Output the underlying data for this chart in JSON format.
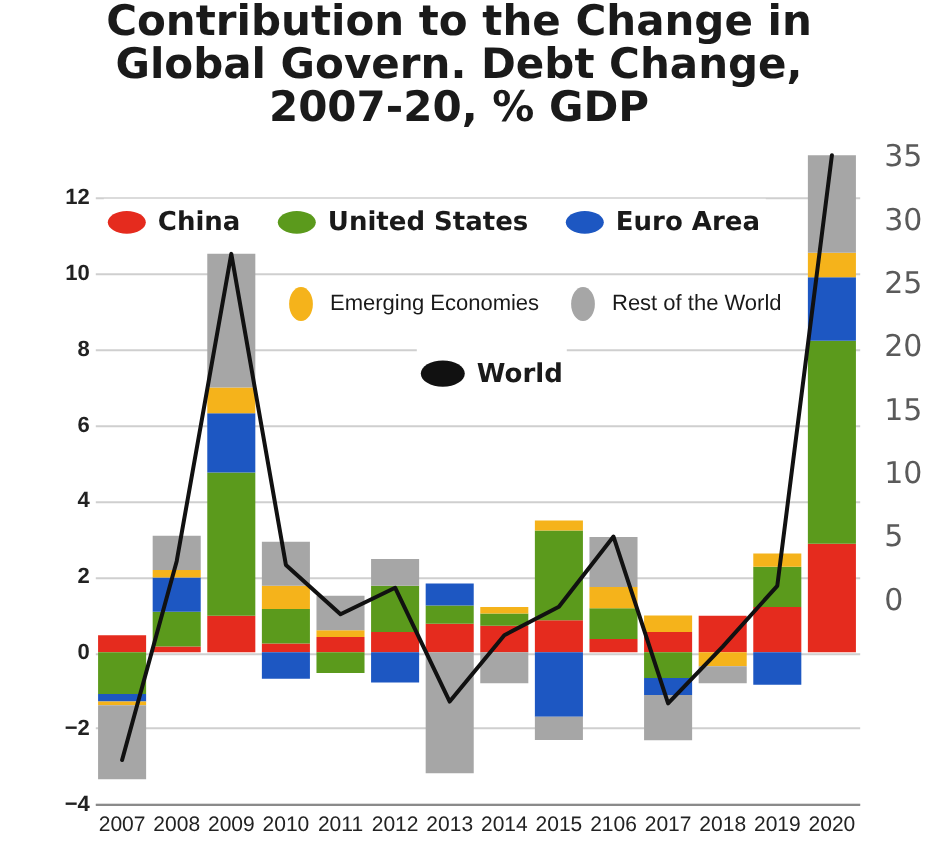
{
  "chart_data": {
    "type": "bar",
    "stacked": true,
    "title": "Contribution to the Change in Global Govern. Debt Change, 2007-20, % GDP",
    "categories": [
      "2007",
      "2008",
      "2009",
      "2010",
      "2011",
      "2012",
      "2013",
      "2014",
      "2015",
      "2106",
      "2017",
      "2018",
      "2019",
      "2020"
    ],
    "series": [
      {
        "name": "China",
        "color": "#e52b1e",
        "values": [
          0.45,
          0.15,
          0.96,
          0.23,
          0.4,
          0.53,
          0.75,
          0.7,
          0.84,
          0.35,
          0.53,
          0.96,
          1.19,
          2.86
        ]
      },
      {
        "name": "United States",
        "color": "#5b9a1c",
        "values": [
          -1.1,
          0.92,
          3.78,
          0.91,
          -0.55,
          1.22,
          0.48,
          0.32,
          2.37,
          0.81,
          -0.68,
          null,
          1.06,
          5.35
        ]
      },
      {
        "name": "Euro Area",
        "color": "#1d57c2",
        "values": [
          -0.2,
          0.9,
          1.56,
          -0.7,
          null,
          -0.8,
          0.58,
          null,
          -1.7,
          null,
          -0.45,
          null,
          -0.86,
          1.67
        ]
      },
      {
        "name": "Emerging Economies",
        "color": "#f5b31b",
        "values": [
          -0.1,
          0.2,
          0.68,
          0.61,
          0.18,
          null,
          null,
          0.17,
          0.26,
          0.56,
          0.44,
          -0.37,
          0.35,
          0.65
        ]
      },
      {
        "name": "Rest of the World",
        "color": "#a6a6a6",
        "values": [
          -1.95,
          0.9,
          3.52,
          1.16,
          0.91,
          0.71,
          -3.19,
          -0.82,
          -0.61,
          1.32,
          -1.19,
          -0.45,
          null,
          2.57
        ]
      },
      {
        "name": "World",
        "type": "line",
        "color": "#111111",
        "values": [
          -2.84,
          2.4,
          10.5,
          2.3,
          1.0,
          1.7,
          -1.3,
          0.45,
          1.2,
          3.05,
          -1.35,
          0.15,
          1.75,
          13.1
        ]
      }
    ],
    "ylim": [
      -4,
      13.1
    ],
    "yticks": [
      -4,
      -2,
      0,
      2,
      4,
      6,
      8,
      10,
      12
    ],
    "y2lim": [
      -16.2,
      35
    ],
    "y2ticks": [
      0,
      5,
      10,
      15,
      20,
      25,
      30,
      35
    ],
    "grid": "y",
    "legend": "top"
  }
}
